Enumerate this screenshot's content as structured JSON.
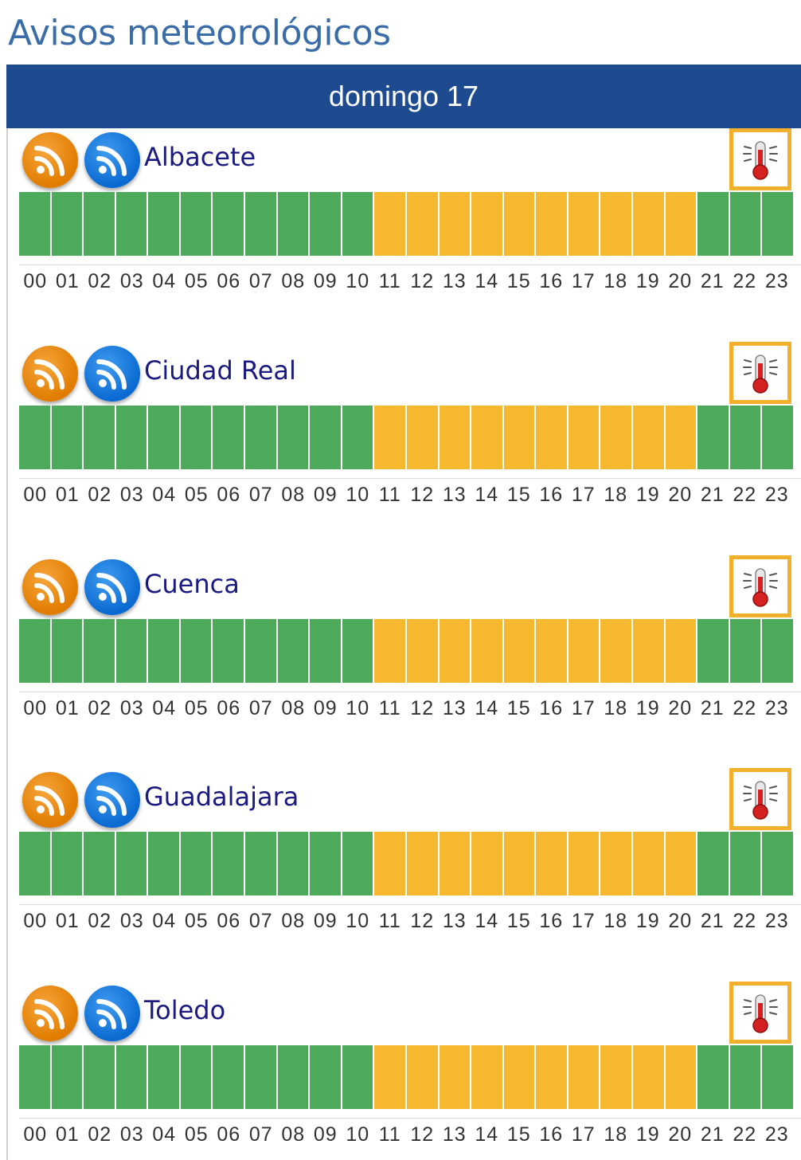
{
  "page": {
    "title": "Avisos meteorológicos"
  },
  "day_header": "domingo 17",
  "colors": {
    "header_bg": "#1e4b8f",
    "green": "#4daa5a",
    "yellow": "#f5b82e",
    "alert_border": "#f3b02d"
  },
  "hours": [
    "00",
    "01",
    "02",
    "03",
    "04",
    "05",
    "06",
    "07",
    "08",
    "09",
    "10",
    "11",
    "12",
    "13",
    "14",
    "15",
    "16",
    "17",
    "18",
    "19",
    "20",
    "21",
    "22",
    "23"
  ],
  "regions": [
    {
      "name": "Albacete",
      "icons": [
        "rss-orange-icon",
        "rss-blue-icon"
      ],
      "alert_icon": "high-temperature-icon",
      "levels": [
        "green",
        "green",
        "green",
        "green",
        "green",
        "green",
        "green",
        "green",
        "green",
        "green",
        "green",
        "yellow",
        "yellow",
        "yellow",
        "yellow",
        "yellow",
        "yellow",
        "yellow",
        "yellow",
        "yellow",
        "yellow",
        "green",
        "green",
        "green"
      ]
    },
    {
      "name": "Ciudad Real",
      "icons": [
        "rss-orange-icon",
        "rss-blue-icon"
      ],
      "alert_icon": "high-temperature-icon",
      "levels": [
        "green",
        "green",
        "green",
        "green",
        "green",
        "green",
        "green",
        "green",
        "green",
        "green",
        "green",
        "yellow",
        "yellow",
        "yellow",
        "yellow",
        "yellow",
        "yellow",
        "yellow",
        "yellow",
        "yellow",
        "yellow",
        "green",
        "green",
        "green"
      ]
    },
    {
      "name": "Cuenca",
      "icons": [
        "rss-orange-icon",
        "rss-blue-icon"
      ],
      "alert_icon": "high-temperature-icon",
      "levels": [
        "green",
        "green",
        "green",
        "green",
        "green",
        "green",
        "green",
        "green",
        "green",
        "green",
        "green",
        "yellow",
        "yellow",
        "yellow",
        "yellow",
        "yellow",
        "yellow",
        "yellow",
        "yellow",
        "yellow",
        "yellow",
        "green",
        "green",
        "green"
      ]
    },
    {
      "name": "Guadalajara",
      "icons": [
        "rss-orange-icon",
        "rss-blue-icon"
      ],
      "alert_icon": "high-temperature-icon",
      "levels": [
        "green",
        "green",
        "green",
        "green",
        "green",
        "green",
        "green",
        "green",
        "green",
        "green",
        "green",
        "yellow",
        "yellow",
        "yellow",
        "yellow",
        "yellow",
        "yellow",
        "yellow",
        "yellow",
        "yellow",
        "yellow",
        "green",
        "green",
        "green"
      ]
    },
    {
      "name": "Toledo",
      "icons": [
        "rss-orange-icon",
        "rss-blue-icon"
      ],
      "alert_icon": "high-temperature-icon",
      "levels": [
        "green",
        "green",
        "green",
        "green",
        "green",
        "green",
        "green",
        "green",
        "green",
        "green",
        "green",
        "yellow",
        "yellow",
        "yellow",
        "yellow",
        "yellow",
        "yellow",
        "yellow",
        "yellow",
        "yellow",
        "yellow",
        "green",
        "green",
        "green"
      ]
    }
  ]
}
